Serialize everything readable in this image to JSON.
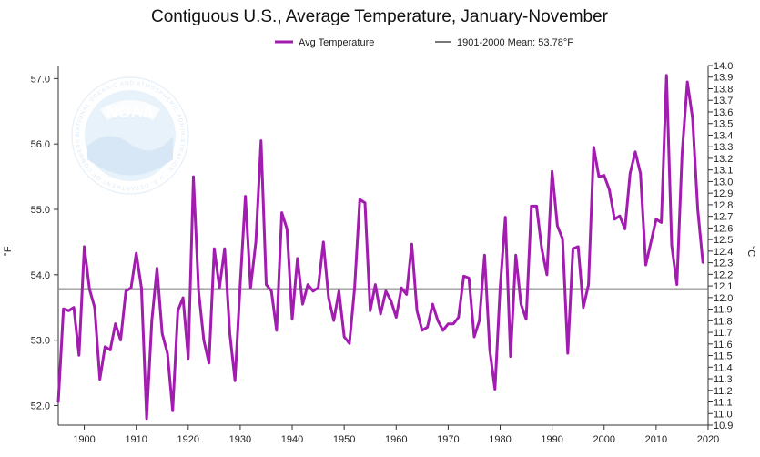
{
  "chart_data": {
    "type": "line",
    "title": "Contiguous U.S., Average Temperature, January-November",
    "xlabel": "",
    "ylabel": "°F",
    "y2label": "°C",
    "xlim": [
      1895,
      2020
    ],
    "ylim": [
      51.7,
      57.2
    ],
    "y2lim": [
      10.9,
      14.0
    ],
    "x_ticks": [
      "1900",
      "1910",
      "1920",
      "1930",
      "1940",
      "1950",
      "1960",
      "1970",
      "1980",
      "1990",
      "2000",
      "2010",
      "2020"
    ],
    "y_ticks": [
      "52.0",
      "53.0",
      "54.0",
      "55.0",
      "56.0",
      "57.0"
    ],
    "y2_ticks": [
      "10.9",
      "11.0",
      "11.1",
      "11.2",
      "11.3",
      "11.4",
      "11.5",
      "11.6",
      "11.7",
      "11.8",
      "11.9",
      "12.0",
      "12.1",
      "12.2",
      "12.3",
      "12.4",
      "12.5",
      "12.6",
      "12.7",
      "12.8",
      "12.9",
      "13.0",
      "13.1",
      "13.2",
      "13.3",
      "13.4",
      "13.5",
      "13.6",
      "13.7",
      "13.8",
      "13.9",
      "14.0"
    ],
    "series": [
      {
        "name": "Avg Temperature",
        "color": "#a21caf",
        "x": [
          1895,
          1896,
          1897,
          1898,
          1899,
          1900,
          1901,
          1902,
          1903,
          1904,
          1905,
          1906,
          1907,
          1908,
          1909,
          1910,
          1911,
          1912,
          1913,
          1914,
          1915,
          1916,
          1917,
          1918,
          1919,
          1920,
          1921,
          1922,
          1923,
          1924,
          1925,
          1926,
          1927,
          1928,
          1929,
          1930,
          1931,
          1932,
          1933,
          1934,
          1935,
          1936,
          1937,
          1938,
          1939,
          1940,
          1941,
          1942,
          1943,
          1944,
          1945,
          1946,
          1947,
          1948,
          1949,
          1950,
          1951,
          1952,
          1953,
          1954,
          1955,
          1956,
          1957,
          1958,
          1959,
          1960,
          1961,
          1962,
          1963,
          1964,
          1965,
          1966,
          1967,
          1968,
          1969,
          1970,
          1971,
          1972,
          1973,
          1974,
          1975,
          1976,
          1977,
          1978,
          1979,
          1980,
          1981,
          1982,
          1983,
          1984,
          1985,
          1986,
          1987,
          1988,
          1989,
          1990,
          1991,
          1992,
          1993,
          1994,
          1995,
          1996,
          1997,
          1998,
          1999,
          2000,
          2001,
          2002,
          2003,
          2004,
          2005,
          2006,
          2007,
          2008,
          2009,
          2010,
          2011,
          2012,
          2013,
          2014,
          2015,
          2016,
          2017,
          2018,
          2019
        ],
        "values": [
          52.05,
          53.48,
          53.45,
          53.5,
          52.77,
          54.43,
          53.78,
          53.5,
          52.4,
          52.9,
          52.85,
          53.25,
          53.0,
          53.75,
          53.8,
          54.33,
          53.8,
          51.8,
          53.3,
          54.1,
          53.1,
          52.8,
          51.92,
          53.45,
          53.65,
          52.72,
          55.5,
          53.75,
          53.0,
          52.65,
          54.4,
          53.8,
          54.4,
          53.1,
          52.38,
          53.85,
          55.2,
          53.8,
          54.5,
          56.05,
          53.85,
          53.75,
          53.15,
          54.95,
          54.7,
          53.32,
          54.25,
          53.55,
          53.85,
          53.75,
          53.8,
          54.5,
          53.65,
          53.3,
          53.75,
          53.05,
          52.95,
          53.8,
          55.15,
          55.1,
          53.45,
          53.85,
          53.4,
          53.75,
          53.6,
          53.35,
          53.8,
          53.7,
          54.47,
          53.45,
          53.15,
          53.2,
          53.55,
          53.3,
          53.15,
          53.25,
          53.25,
          53.35,
          53.98,
          53.95,
          53.05,
          53.3,
          54.3,
          52.85,
          52.25,
          53.8,
          54.88,
          52.75,
          54.3,
          53.55,
          53.32,
          55.05,
          55.05,
          54.4,
          54.0,
          55.58,
          54.75,
          54.55,
          52.8,
          54.4,
          54.43,
          53.5,
          53.85,
          55.95,
          55.5,
          55.52,
          55.3,
          54.85,
          54.9,
          54.7,
          55.55,
          55.88,
          55.55,
          54.15,
          54.5,
          54.85,
          54.8,
          57.05,
          54.45,
          53.85,
          55.85,
          56.95,
          56.4,
          55.0,
          54.18
        ]
      },
      {
        "name": "1901-2000 Mean: 53.78°F",
        "color": "#777777",
        "values": [
          53.78
        ]
      }
    ],
    "legend_position": "top-center",
    "grid": false
  },
  "watermark": {
    "logo_text": "NOAA",
    "ring_text": "NATIONAL OCEANIC AND ATMOSPHERIC ADMINISTRATION · U.S. DEPARTMENT OF COMMERCE"
  }
}
